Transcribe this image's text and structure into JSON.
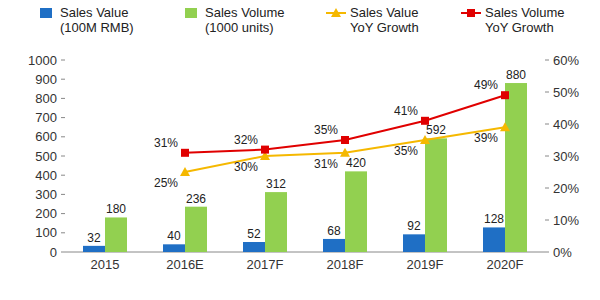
{
  "chart_data": {
    "type": "bar",
    "categories": [
      "2015",
      "2016E",
      "2017F",
      "2018F",
      "2019F",
      "2020F"
    ],
    "series": [
      {
        "name": "Sales Value (100M RMB)",
        "type": "bar",
        "color": "#1f6fc5",
        "values": [
          32,
          40,
          52,
          68,
          92,
          128
        ]
      },
      {
        "name": "Sales Volume (1000 units)",
        "type": "bar",
        "color": "#92d050",
        "values": [
          180,
          236,
          312,
          420,
          592,
          880
        ]
      },
      {
        "name": "Sales Value YoY Growth",
        "type": "line",
        "axis": "y2",
        "color": "#f5b800",
        "marker": "triangle",
        "line_style": "solid",
        "values": [
          null,
          25,
          30,
          31,
          35,
          39
        ],
        "value_labels": [
          null,
          "25%",
          "30%",
          "31%",
          "35%",
          "39%"
        ]
      },
      {
        "name": "Sales Volume YoY Growth",
        "type": "line",
        "axis": "y2",
        "color": "#e00000",
        "marker": "square",
        "line_style": "solid",
        "values": [
          null,
          31,
          32,
          35,
          41,
          49
        ],
        "value_labels": [
          null,
          "31%",
          "32%",
          "35%",
          "41%",
          "49%"
        ]
      }
    ],
    "ylim": [
      0,
      1000
    ],
    "yticks": [
      0,
      100,
      200,
      300,
      400,
      500,
      600,
      700,
      800,
      900,
      1000
    ],
    "y2lim": [
      0,
      60
    ],
    "y2ticks": [
      {
        "value": 0,
        "label": "0%"
      },
      {
        "value": 10,
        "label": "10%"
      },
      {
        "value": 20,
        "label": "20%"
      },
      {
        "value": 30,
        "label": "30%"
      },
      {
        "value": 40,
        "label": "40%"
      },
      {
        "value": 50,
        "label": "50%"
      },
      {
        "value": 60,
        "label": "60%"
      }
    ],
    "grid": false,
    "legend": "top",
    "data_labels": true
  }
}
